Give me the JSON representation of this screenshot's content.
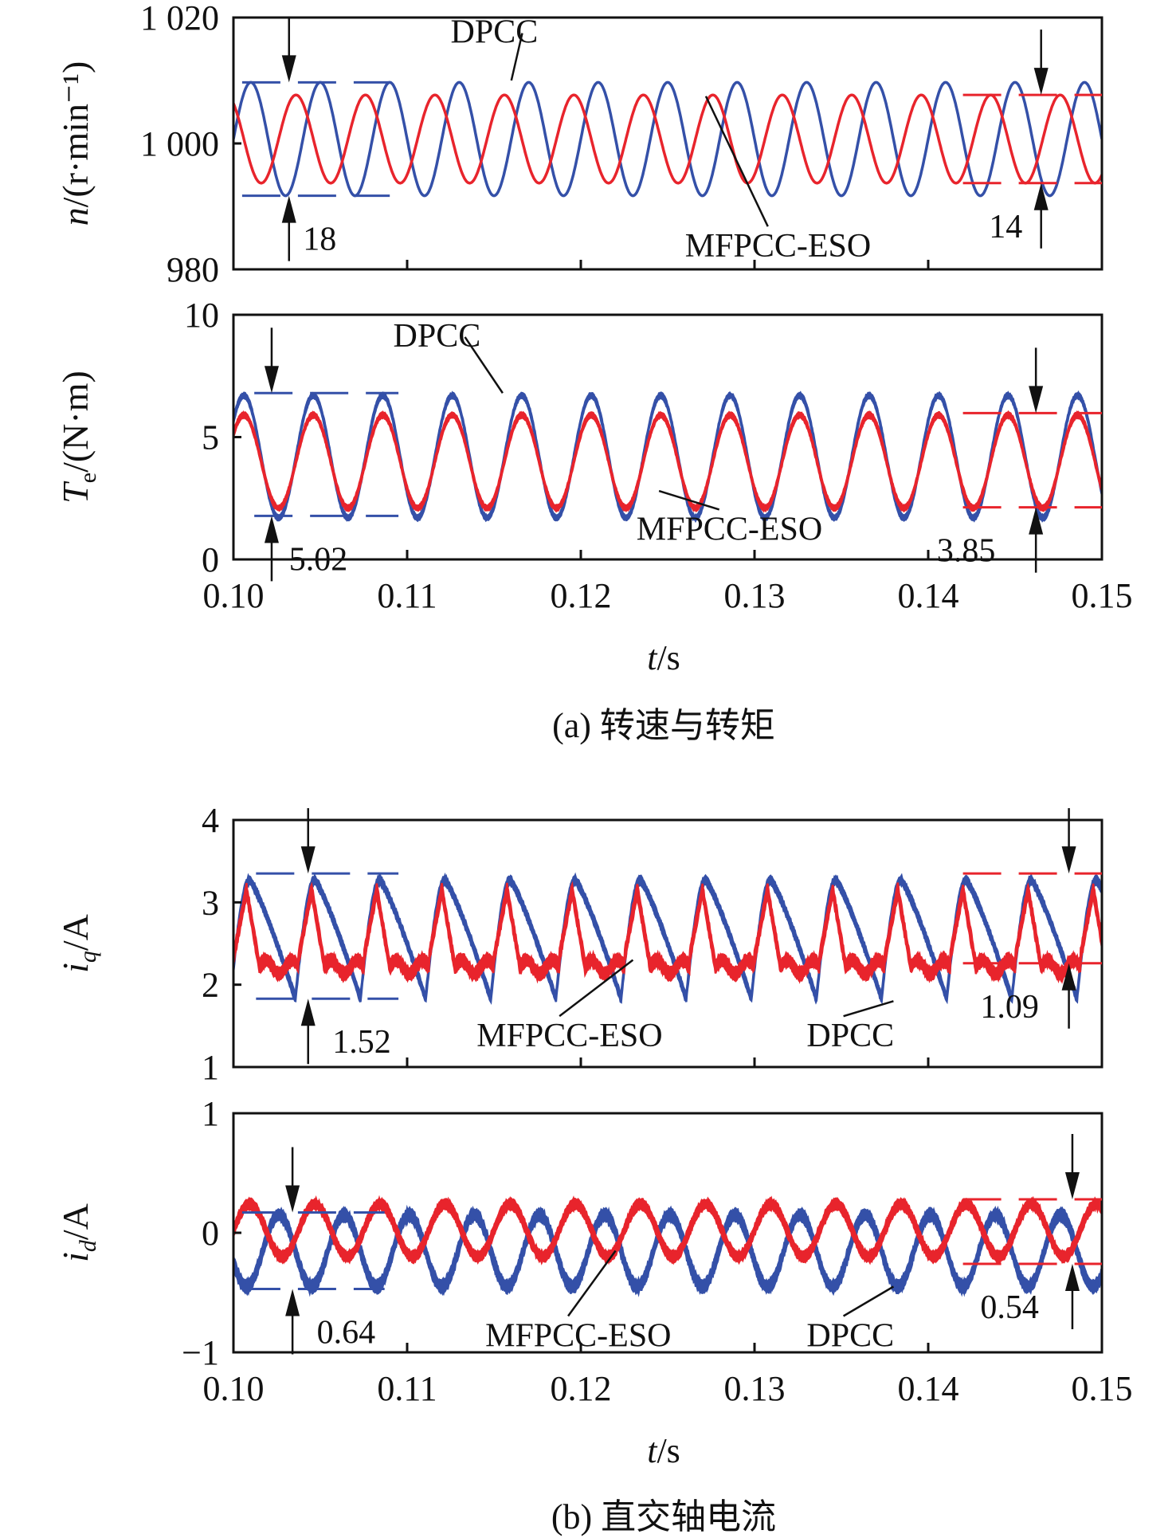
{
  "figure": {
    "caption_a": "(a) 转速与转矩",
    "caption_b": "(b) 直交轴电流",
    "xlabel": "t/s",
    "colors": {
      "DPCC": "#3450a8",
      "MFPCC-ESO": "#e8242c",
      "axis": "#111111"
    }
  },
  "chart_data": [
    {
      "type": "line",
      "id": "speed",
      "ylabel": "n/(r·min⁻¹)",
      "ylabel_parts": {
        "var": "n",
        "unit": "/(r·min⁻¹)"
      },
      "xlim": [
        0.1,
        0.15
      ],
      "ylim": [
        980,
        1020
      ],
      "yticks": [
        980,
        1000,
        1020
      ],
      "ytick_labels": [
        "980",
        "1 000",
        "1 020"
      ],
      "xticks": [
        0.1,
        0.11,
        0.12,
        0.13,
        0.14,
        0.15
      ],
      "xtick_labels": [],
      "period_s": 0.004,
      "series": [
        {
          "name": "DPCC",
          "mean": 1000.7,
          "amplitude": 9,
          "phase": 0,
          "noise": 0,
          "shape": "sine"
        },
        {
          "name": "MFPCC-ESO",
          "mean": 1000.7,
          "amplitude": 7,
          "phase": 0.35,
          "noise": 0,
          "shape": "sine"
        }
      ],
      "annotations": [
        {
          "label": "DPCC",
          "text_at": [
            0.1125,
            1016
          ],
          "point_to": [
            0.116,
            1010
          ]
        },
        {
          "label": "MFPCC-ESO",
          "text_at": [
            0.126,
            982
          ],
          "point_to": [
            0.1272,
            1007.5
          ]
        },
        {
          "label": "18",
          "series": "DPCC",
          "x": 0.1032,
          "y_top": 1009.7,
          "y_bot": 991.7,
          "band_x": [
            0.1005,
            0.109
          ],
          "text_x": 0.104
        },
        {
          "label": "14",
          "series": "MFPCC-ESO",
          "x": 0.1465,
          "y_top": 1007.7,
          "y_bot": 993.7,
          "band_x": [
            0.142,
            0.15
          ],
          "text_x": 0.1435
        }
      ]
    },
    {
      "type": "line",
      "id": "torque",
      "ylabel": "Te/(N·m)",
      "ylabel_parts": {
        "var": "T",
        "sub": "e",
        "unit": "/(N·m)"
      },
      "xlim": [
        0.1,
        0.15
      ],
      "ylim": [
        0,
        10
      ],
      "yticks": [
        0,
        5,
        10
      ],
      "ytick_labels": [
        "0",
        "5",
        "10"
      ],
      "xticks": [
        0.1,
        0.11,
        0.12,
        0.13,
        0.14,
        0.15
      ],
      "xtick_labels": [
        "0.10",
        "0.11",
        "0.12",
        "0.13",
        "0.14",
        "0.15"
      ],
      "period_s": 0.004,
      "series": [
        {
          "name": "DPCC",
          "mean": 4.2,
          "amplitude": 2.5,
          "phase": 0.1,
          "noise": 0.25,
          "shape": "sine"
        },
        {
          "name": "MFPCC-ESO",
          "mean": 4.0,
          "amplitude": 1.9,
          "phase": 0.1,
          "noise": 0.25,
          "shape": "sine"
        }
      ],
      "annotations": [
        {
          "label": "DPCC",
          "text_at": [
            0.1092,
            8.7
          ],
          "point_to": [
            0.1155,
            6.8
          ]
        },
        {
          "label": "MFPCC-ESO",
          "text_at": [
            0.1232,
            0.8
          ],
          "point_to": [
            0.1245,
            2.8
          ]
        },
        {
          "label": "5.02",
          "series": "DPCC",
          "x": 0.1022,
          "y_top": 6.8,
          "y_bot": 1.78,
          "band_x": [
            0.1012,
            0.1095
          ],
          "text_x": 0.1032
        },
        {
          "label": "3.85",
          "series": "MFPCC-ESO",
          "x": 0.1462,
          "y_top": 5.98,
          "y_bot": 2.13,
          "band_x": [
            0.142,
            0.15
          ],
          "text_x": 0.1405
        }
      ]
    },
    {
      "type": "line",
      "id": "iq",
      "ylabel": "iq/A",
      "ylabel_parts": {
        "var": "i",
        "sub": "q",
        "unit": "/A"
      },
      "xlim": [
        0.1,
        0.15
      ],
      "ylim": [
        1,
        4
      ],
      "yticks": [
        1,
        2,
        3,
        4
      ],
      "ytick_labels": [
        "1",
        "2",
        "3",
        "4"
      ],
      "xticks": [
        0.1,
        0.11,
        0.12,
        0.13,
        0.14,
        0.15
      ],
      "xtick_labels": [],
      "period_s": 0.00375,
      "series": [
        {
          "name": "DPCC",
          "mean": 2.55,
          "amplitude": 0.72,
          "phase": 0.05,
          "noise": 0.12,
          "shape": "skew"
        },
        {
          "name": "MFPCC-ESO",
          "mean": 2.6,
          "amplitude": 0.55,
          "phase": 0.0,
          "noise": 0.18,
          "shape": "peaky"
        }
      ],
      "annotations": [
        {
          "label": "MFPCC-ESO",
          "text_at": [
            0.114,
            1.25
          ],
          "point_to": [
            0.123,
            2.3
          ]
        },
        {
          "label": "DPCC",
          "text_at": [
            0.133,
            1.25
          ],
          "point_to": [
            0.138,
            1.8
          ]
        },
        {
          "label": "1.52",
          "series": "DPCC",
          "x": 0.1043,
          "y_top": 3.35,
          "y_bot": 1.83,
          "band_x": [
            0.1013,
            0.1095
          ],
          "text_x": 0.1057
        },
        {
          "label": "1.09",
          "series": "MFPCC-ESO",
          "x": 0.1481,
          "y_top": 3.35,
          "y_bot": 2.26,
          "band_x": [
            0.142,
            0.15
          ],
          "text_x": 0.143
        }
      ]
    },
    {
      "type": "line",
      "id": "id",
      "ylabel": "id/A",
      "ylabel_parts": {
        "var": "i",
        "sub": "d",
        "unit": "/A"
      },
      "xlim": [
        0.1,
        0.15
      ],
      "ylim": [
        -1,
        1
      ],
      "yticks": [
        -1,
        0,
        1
      ],
      "ytick_labels": [
        "−1",
        "0",
        "1"
      ],
      "xticks": [
        0.1,
        0.11,
        0.12,
        0.13,
        0.14,
        0.15
      ],
      "xtick_labels": [
        "0.10",
        "0.11",
        "0.12",
        "0.13",
        "0.14",
        "0.15"
      ],
      "period_s": 0.00375,
      "series": [
        {
          "name": "DPCC",
          "mean": -0.15,
          "amplitude": 0.3,
          "phase": 0.55,
          "noise": 0.12,
          "shape": "sine"
        },
        {
          "name": "MFPCC-ESO",
          "mean": 0.02,
          "amplitude": 0.22,
          "phase": 0.0,
          "noise": 0.1,
          "shape": "sine"
        }
      ],
      "annotations": [
        {
          "label": "MFPCC-ESO",
          "text_at": [
            0.1145,
            -0.95
          ],
          "point_to": [
            0.122,
            -0.15
          ]
        },
        {
          "label": "DPCC",
          "text_at": [
            0.133,
            -0.95
          ],
          "point_to": [
            0.138,
            -0.45
          ]
        },
        {
          "label": "0.64",
          "series": "DPCC",
          "x": 0.1034,
          "y_top": 0.17,
          "y_bot": -0.47,
          "band_x": [
            0.1005,
            0.1087
          ],
          "text_x": 0.1048
        },
        {
          "label": "0.54",
          "series": "MFPCC-ESO",
          "x": 0.1483,
          "y_top": 0.28,
          "y_bot": -0.26,
          "band_x": [
            0.142,
            0.15
          ],
          "text_x": 0.143
        }
      ]
    }
  ]
}
